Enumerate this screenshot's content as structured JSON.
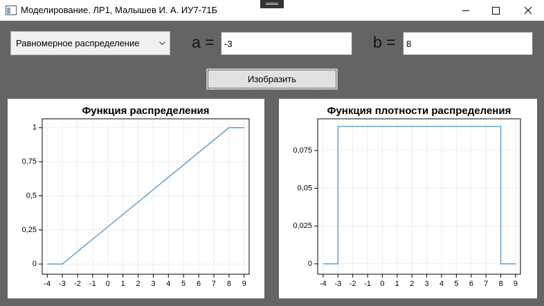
{
  "window": {
    "title": "Моделирование. ЛР1, Малышев И. А. ИУ7-71Б"
  },
  "controls": {
    "distribution": "Равномерное распределение",
    "a_label": "a =",
    "a_value": "-3",
    "b_label": "b =",
    "b_value": "8",
    "button": "Изобразить"
  },
  "chart_data": [
    {
      "type": "line",
      "title": "Функция распределения",
      "x": [
        -4,
        -3,
        8,
        9
      ],
      "series": [
        {
          "color": "#4f94c8",
          "values": [
            0,
            0,
            1,
            1
          ]
        }
      ],
      "xlim": [
        -4.33,
        9.33
      ],
      "xticks": [
        -4,
        -3,
        -2,
        -1,
        0,
        1,
        2,
        3,
        4,
        5,
        6,
        7,
        8,
        9
      ],
      "ylim": [
        -0.075,
        1.065
      ],
      "yticks": [
        0,
        {
          "value": 0.25,
          "label": "0,25"
        },
        {
          "value": 0.5,
          "label": "0,5"
        },
        {
          "value": 0.75,
          "label": "0,75"
        },
        1
      ],
      "grid": true
    },
    {
      "type": "line",
      "title": "Функция плотности распределения",
      "x": [
        -4,
        -3,
        -3,
        8,
        8,
        9
      ],
      "series": [
        {
          "color": "#4f94c8",
          "values": [
            0,
            0,
            0.0909,
            0.0909,
            0,
            0
          ]
        }
      ],
      "xlim": [
        -4.37,
        9.33
      ],
      "xticks": [
        -4,
        -3,
        -2,
        -1,
        0,
        1,
        2,
        3,
        4,
        5,
        6,
        7,
        8,
        9
      ],
      "ylim": [
        -0.0069,
        0.096
      ],
      "yticks": [
        0,
        {
          "value": 0.025,
          "label": "0,025"
        },
        {
          "value": 0.05,
          "label": "0,05"
        },
        {
          "value": 0.075,
          "label": "0,075"
        }
      ],
      "grid": true
    }
  ]
}
